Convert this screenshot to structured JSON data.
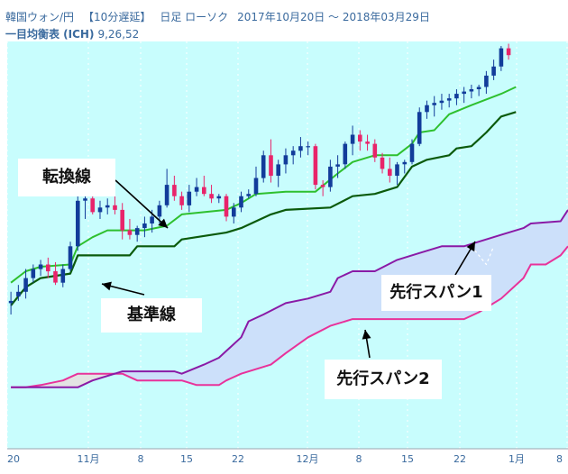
{
  "header": {
    "instrument": "韓国ウォン/円",
    "delay": "【10分遅延】",
    "period_type": "日足 ローソク",
    "date_range": "2017年10月20日 ～ 2018年03月29日",
    "indicator_name": "一目均衡表 (ICH)",
    "indicator_params": "9,26,52"
  },
  "colors": {
    "background": "#c8fdfd",
    "cloud_bull": "#cce0fa",
    "cloud_bear": "#e3e3e3",
    "up_candle": "#123c9a",
    "down_candle": "#e8246a",
    "tenkan": "#2ec02e",
    "kijun": "#0b5a0b",
    "span_a": "#8a1aa6",
    "span_b": "#e8329a"
  },
  "annotations": {
    "tenkan": "転換線",
    "kijun": "基準線",
    "span1": "先行スパン1",
    "span2": "先行スパン2"
  },
  "chart_data": {
    "type": "candlestick",
    "title": "韓国ウォン/円 日足 ローソク",
    "x_ticks": [
      "20",
      "11月",
      "8",
      "15",
      "22",
      "12月",
      "8",
      "15",
      "22",
      "1月",
      "8"
    ],
    "candles": [
      [
        0.1,
        0.6,
        -0.4,
        0.2
      ],
      [
        0.4,
        0.9,
        0.2,
        0.6
      ],
      [
        0.6,
        1.6,
        0.3,
        1.2
      ],
      [
        1.2,
        1.8,
        1.0,
        1.6
      ],
      [
        1.6,
        2.0,
        1.3,
        1.8
      ],
      [
        1.8,
        2.1,
        1.2,
        1.5
      ],
      [
        1.5,
        1.9,
        0.9,
        1.0
      ],
      [
        1.0,
        1.8,
        0.8,
        1.6
      ],
      [
        1.6,
        2.8,
        1.5,
        2.6
      ],
      [
        2.6,
        4.8,
        2.4,
        4.6
      ],
      [
        4.6,
        5.1,
        3.8,
        4.7
      ],
      [
        4.7,
        4.9,
        4.0,
        4.1
      ],
      [
        4.1,
        4.6,
        3.8,
        4.3
      ],
      [
        4.3,
        4.7,
        4.0,
        4.4
      ],
      [
        4.4,
        4.8,
        4.0,
        4.2
      ],
      [
        4.2,
        4.5,
        2.9,
        3.3
      ],
      [
        3.3,
        3.8,
        2.9,
        3.1
      ],
      [
        3.1,
        3.5,
        2.8,
        3.4
      ],
      [
        3.4,
        3.9,
        3.0,
        3.6
      ],
      [
        3.6,
        4.2,
        3.2,
        3.9
      ],
      [
        3.9,
        4.6,
        3.6,
        4.4
      ],
      [
        4.4,
        6.0,
        4.3,
        5.3
      ],
      [
        5.3,
        5.7,
        4.6,
        4.8
      ],
      [
        4.8,
        5.0,
        4.2,
        4.4
      ],
      [
        4.4,
        5.3,
        4.1,
        5.0
      ],
      [
        5.0,
        5.6,
        4.8,
        5.2
      ],
      [
        5.2,
        5.7,
        4.8,
        4.9
      ],
      [
        4.9,
        5.3,
        4.5,
        4.7
      ],
      [
        4.7,
        4.9,
        4.5,
        4.8
      ],
      [
        4.8,
        4.9,
        3.7,
        3.9
      ],
      [
        3.9,
        4.5,
        3.6,
        4.3
      ],
      [
        4.3,
        5.0,
        4.1,
        4.8
      ],
      [
        4.8,
        5.1,
        4.7,
        4.9
      ],
      [
        4.9,
        6.1,
        4.8,
        5.6
      ],
      [
        5.6,
        6.8,
        5.4,
        6.6
      ],
      [
        6.6,
        7.3,
        5.4,
        5.7
      ],
      [
        5.7,
        6.4,
        5.2,
        6.2
      ],
      [
        6.2,
        6.9,
        5.8,
        6.6
      ],
      [
        6.6,
        7.0,
        6.2,
        6.8
      ],
      [
        6.8,
        7.4,
        6.5,
        7.0
      ],
      [
        7.0,
        7.2,
        6.6,
        7.0
      ],
      [
        7.0,
        7.1,
        5.1,
        5.3
      ],
      [
        5.3,
        5.5,
        4.8,
        5.2
      ],
      [
        5.2,
        6.4,
        5.0,
        6.1
      ],
      [
        6.1,
        6.6,
        5.6,
        6.2
      ],
      [
        6.2,
        7.2,
        6.0,
        7.1
      ],
      [
        7.1,
        7.9,
        6.6,
        7.5
      ],
      [
        7.5,
        7.7,
        6.8,
        7.2
      ],
      [
        7.2,
        7.5,
        6.8,
        7.1
      ],
      [
        7.1,
        7.3,
        6.3,
        6.5
      ],
      [
        6.5,
        6.7,
        5.8,
        6.0
      ],
      [
        6.0,
        6.5,
        5.4,
        5.7
      ],
      [
        5.7,
        6.3,
        5.3,
        6.2
      ],
      [
        6.2,
        6.4,
        5.8,
        6.3
      ],
      [
        6.3,
        7.3,
        6.2,
        7.1
      ],
      [
        7.1,
        8.7,
        7.0,
        8.5
      ],
      [
        8.5,
        9.0,
        8.2,
        8.8
      ],
      [
        8.8,
        9.2,
        8.3,
        8.9
      ],
      [
        8.9,
        9.3,
        8.6,
        9.0
      ],
      [
        9.0,
        9.3,
        8.7,
        9.1
      ],
      [
        9.1,
        9.5,
        8.8,
        9.3
      ],
      [
        9.3,
        9.6,
        8.9,
        9.4
      ],
      [
        9.4,
        9.7,
        9.1,
        9.5
      ],
      [
        9.5,
        9.7,
        9.2,
        9.6
      ],
      [
        9.6,
        10.3,
        9.3,
        10.1
      ],
      [
        10.1,
        10.8,
        9.9,
        10.5
      ],
      [
        10.5,
        11.4,
        10.3,
        11.3
      ],
      [
        11.3,
        11.5,
        10.8,
        11.0
      ]
    ],
    "tenkan": [
      [
        0,
        1.0
      ],
      [
        2,
        1.5
      ],
      [
        4,
        1.7
      ],
      [
        8,
        1.8
      ],
      [
        9,
        2.6
      ],
      [
        11,
        3.0
      ],
      [
        13,
        3.3
      ],
      [
        18,
        3.3
      ],
      [
        21,
        3.5
      ],
      [
        23,
        4.0
      ],
      [
        29,
        4.2
      ],
      [
        31,
        4.5
      ],
      [
        33,
        4.9
      ],
      [
        37,
        5.0
      ],
      [
        41,
        5.0
      ],
      [
        44,
        5.8
      ],
      [
        46,
        6.3
      ],
      [
        49,
        6.6
      ],
      [
        52,
        6.6
      ],
      [
        54,
        7.1
      ],
      [
        55,
        7.6
      ],
      [
        57,
        7.7
      ],
      [
        59,
        8.4
      ],
      [
        62,
        8.8
      ],
      [
        66,
        9.3
      ],
      [
        68,
        9.6
      ]
    ],
    "kijun": [
      [
        0,
        0.0
      ],
      [
        2,
        0.8
      ],
      [
        4,
        1.2
      ],
      [
        8,
        1.4
      ],
      [
        9,
        2.2
      ],
      [
        16,
        2.2
      ],
      [
        17,
        2.6
      ],
      [
        22,
        2.6
      ],
      [
        23,
        2.9
      ],
      [
        29,
        3.2
      ],
      [
        31,
        3.4
      ],
      [
        35,
        4.0
      ],
      [
        37,
        4.2
      ],
      [
        43,
        4.3
      ],
      [
        46,
        4.8
      ],
      [
        49,
        4.9
      ],
      [
        52,
        5.2
      ],
      [
        54,
        6.1
      ],
      [
        56,
        6.4
      ],
      [
        59,
        6.6
      ],
      [
        60,
        6.9
      ],
      [
        62,
        7.0
      ],
      [
        64,
        7.6
      ],
      [
        66,
        8.3
      ],
      [
        68,
        8.5
      ]
    ],
    "span_a": [
      [
        0,
        -3.6
      ],
      [
        9,
        -3.6
      ],
      [
        11,
        -3.3
      ],
      [
        15,
        -2.9
      ],
      [
        22,
        -2.9
      ],
      [
        23,
        -3.0
      ],
      [
        26,
        -2.6
      ],
      [
        28,
        -2.3
      ],
      [
        31,
        -1.4
      ],
      [
        32,
        -0.7
      ],
      [
        34,
        -0.4
      ],
      [
        37,
        0.1
      ],
      [
        40,
        0.3
      ],
      [
        43,
        0.6
      ],
      [
        44,
        1.2
      ],
      [
        46,
        1.5
      ],
      [
        49,
        1.5
      ],
      [
        52,
        2.0
      ],
      [
        55,
        2.3
      ],
      [
        58,
        2.6
      ],
      [
        61,
        2.6
      ],
      [
        63,
        2.8
      ],
      [
        66,
        3.1
      ],
      [
        69,
        3.4
      ],
      [
        70,
        3.6
      ],
      [
        74,
        3.7
      ],
      [
        75,
        4.2
      ]
    ],
    "span_b": [
      [
        0,
        -3.6
      ],
      [
        2,
        -3.6
      ],
      [
        4,
        -3.5
      ],
      [
        7,
        -3.3
      ],
      [
        9,
        -3.0
      ],
      [
        15,
        -3.0
      ],
      [
        17,
        -3.3
      ],
      [
        23,
        -3.3
      ],
      [
        25,
        -3.5
      ],
      [
        28,
        -3.5
      ],
      [
        29,
        -3.3
      ],
      [
        31,
        -3.0
      ],
      [
        35,
        -2.6
      ],
      [
        37,
        -2.1
      ],
      [
        40,
        -1.4
      ],
      [
        43,
        -0.9
      ],
      [
        46,
        -0.6
      ],
      [
        52,
        -0.6
      ],
      [
        58,
        -0.6
      ],
      [
        61,
        -0.6
      ],
      [
        63,
        -0.3
      ],
      [
        66,
        0.3
      ],
      [
        69,
        1.2
      ],
      [
        70,
        1.8
      ],
      [
        72,
        1.8
      ],
      [
        74,
        2.2
      ],
      [
        75,
        2.6
      ]
    ],
    "span_a_dash": [
      [
        62,
        2.6
      ],
      [
        64,
        1.8
      ],
      [
        65,
        2.6
      ]
    ],
    "y_range": [
      -6.3,
      11.6
    ],
    "x_range": [
      -0.5,
      75
    ]
  }
}
